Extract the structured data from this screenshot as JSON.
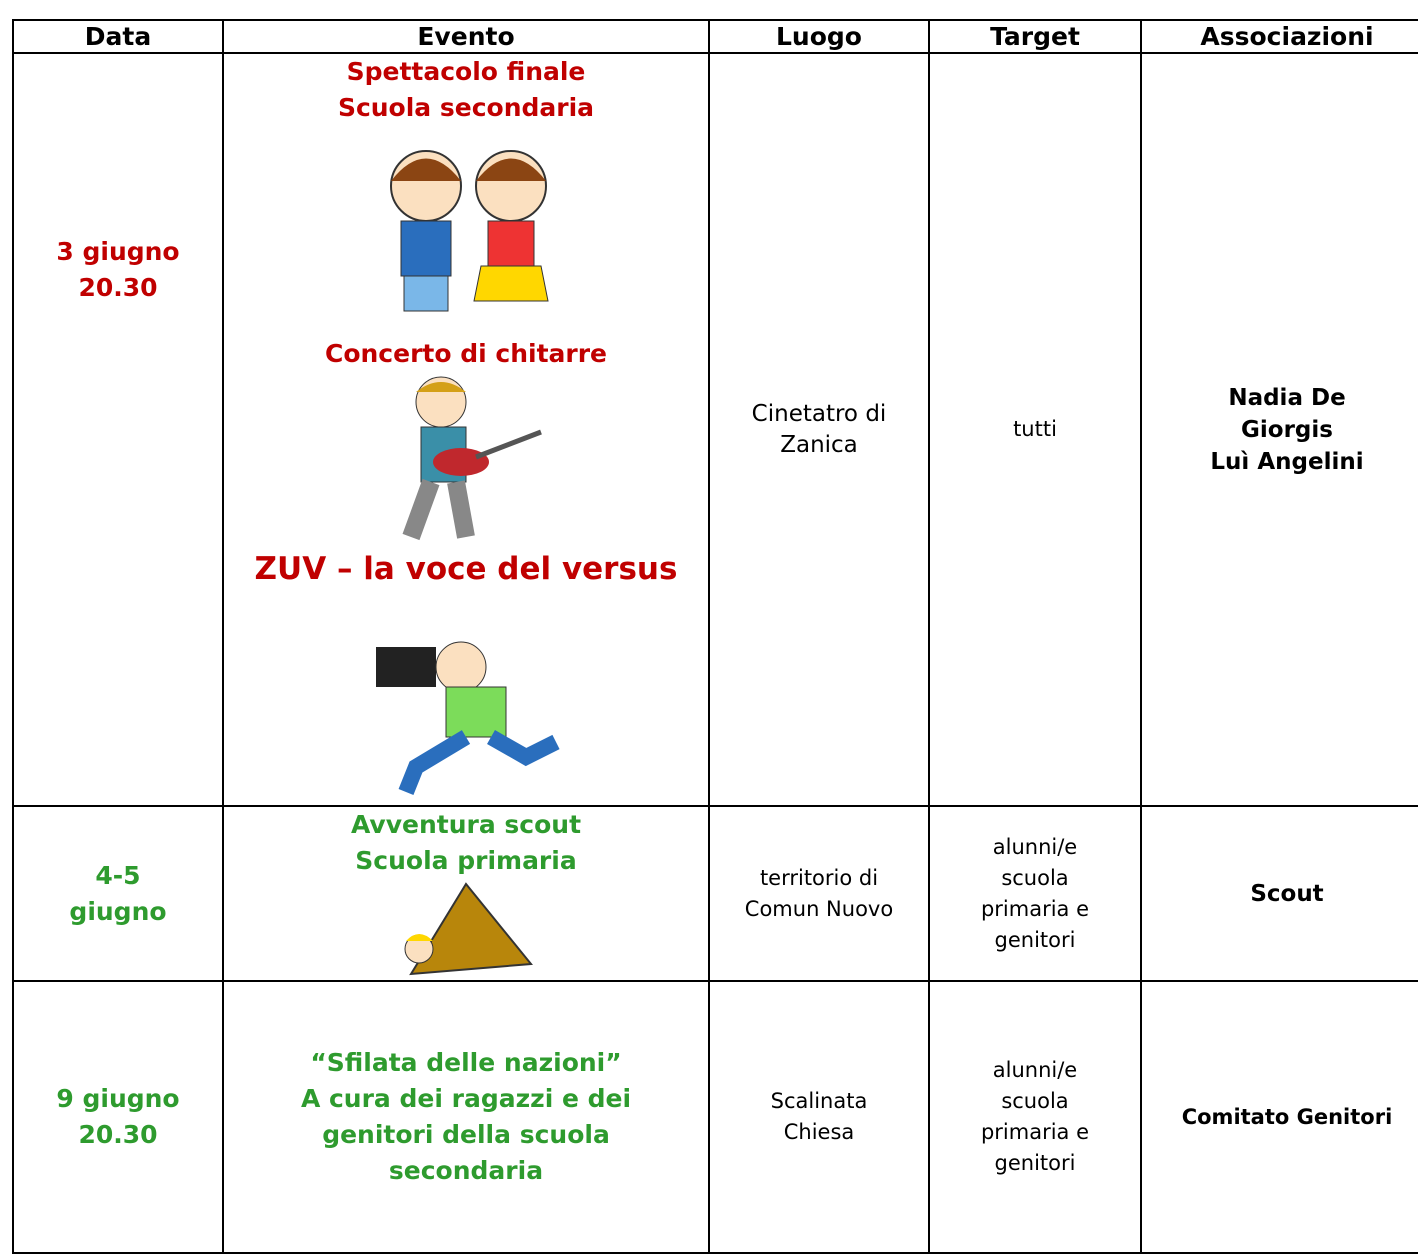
{
  "table": {
    "headers": [
      "Data",
      "Evento",
      "Luogo",
      "Target",
      "Associazioni"
    ],
    "rows": [
      {
        "date": [
          "3 giugno",
          "20.30"
        ],
        "events": [
          [
            "Spettacolo finale",
            "Scuola secondaria"
          ],
          [
            "Concerto di chitarre"
          ],
          [
            "ZUV – la voce del versus"
          ]
        ],
        "place": [
          "Cinetatro di",
          "Zanica"
        ],
        "target": [
          "tutti"
        ],
        "associations": [
          "Nadia De",
          "Giorgis",
          "Luì Angelini"
        ]
      },
      {
        "date": [
          "4-5",
          "giugno"
        ],
        "events": [
          [
            "Avventura scout",
            "Scuola primaria"
          ]
        ],
        "place": [
          "territorio di",
          "Comun Nuovo"
        ],
        "target": [
          "alunni/e",
          "scuola",
          "primaria e",
          "genitori"
        ],
        "associations": [
          "Scout"
        ]
      },
      {
        "date": [
          "9 giugno",
          "20.30"
        ],
        "events": [
          [
            "“Sfilata delle nazioni”",
            "A cura dei ragazzi e dei",
            "genitori della scuola",
            "secondaria"
          ]
        ],
        "place": [
          "Scalinata",
          "Chiesa"
        ],
        "target": [
          "alunni/e",
          "scuola",
          "primaria e",
          "genitori"
        ],
        "associations": [
          "Comitato Genitori"
        ]
      }
    ]
  }
}
